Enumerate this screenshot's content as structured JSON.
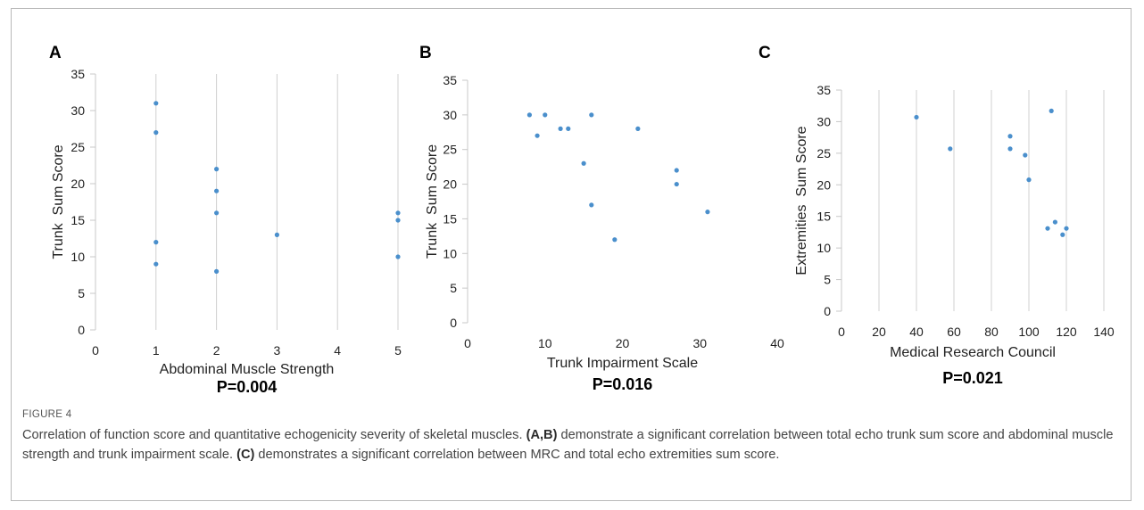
{
  "caption": {
    "label": "FIGURE 4",
    "text": [
      {
        "t": "Correlation of function score and quantitative echogenicity severity of skeletal muscles. ",
        "b": false
      },
      {
        "t": "(A,B)",
        "b": true
      },
      {
        "t": " demonstrate a significant correlation between total echo trunk sum score and abdominal muscle strength and trunk impairment scale. ",
        "b": false
      },
      {
        "t": "(C)",
        "b": true
      },
      {
        "t": " demonstrates a significant correlation between MRC and total echo extremities sum score.",
        "b": false
      }
    ]
  },
  "colors": {
    "point": "#4a8fcc",
    "grid": "#d0d0d0",
    "axis": "#c8c8c8"
  },
  "chart_data": [
    {
      "type": "scatter",
      "panel": "A",
      "xlabel": "Abdominal Muscle Strength",
      "ylabel": "Trunk  Sum Score",
      "p_value": "P=0.004",
      "xlim": [
        0,
        5
      ],
      "xticks": [
        0,
        1,
        2,
        3,
        4,
        5
      ],
      "ylim": [
        0,
        35
      ],
      "yticks": [
        0,
        5,
        10,
        15,
        20,
        25,
        30,
        35
      ],
      "grid": "vertical",
      "points": [
        [
          1,
          31
        ],
        [
          1,
          27
        ],
        [
          1,
          12
        ],
        [
          1,
          9
        ],
        [
          2,
          22
        ],
        [
          2,
          19
        ],
        [
          2,
          16
        ],
        [
          2,
          8
        ],
        [
          3,
          13
        ],
        [
          5,
          16
        ],
        [
          5,
          15
        ],
        [
          5,
          10
        ]
      ]
    },
    {
      "type": "scatter",
      "panel": "B",
      "xlabel": "Trunk Impairment Scale",
      "ylabel": "Trunk  Sum Score",
      "p_value": "P=0.016",
      "xlim": [
        0,
        40
      ],
      "xticks": [
        0,
        10,
        20,
        30,
        40
      ],
      "ylim": [
        0,
        35
      ],
      "yticks": [
        0,
        5,
        10,
        15,
        20,
        25,
        30,
        35
      ],
      "grid": "none",
      "points": [
        [
          8,
          30
        ],
        [
          10,
          30
        ],
        [
          9,
          27
        ],
        [
          12,
          28
        ],
        [
          13,
          28
        ],
        [
          16,
          30
        ],
        [
          15,
          23
        ],
        [
          16,
          17
        ],
        [
          19,
          12
        ],
        [
          22,
          28
        ],
        [
          27,
          22
        ],
        [
          27,
          20
        ],
        [
          31,
          16
        ]
      ]
    },
    {
      "type": "scatter",
      "panel": "C",
      "xlabel": "Medical Research Council",
      "ylabel": "Extremities  Sum Score",
      "p_value": "P=0.021",
      "xlim": [
        0,
        140
      ],
      "xticks": [
        0,
        20,
        40,
        60,
        80,
        100,
        120,
        140
      ],
      "ylim": [
        0,
        35
      ],
      "yticks": [
        0,
        5,
        10,
        15,
        20,
        25,
        30,
        35
      ],
      "grid": "vertical",
      "points": [
        [
          40,
          30.7
        ],
        [
          58,
          25.7
        ],
        [
          90,
          27.7
        ],
        [
          90,
          25.7
        ],
        [
          98,
          24.7
        ],
        [
          100,
          20.8
        ],
        [
          112,
          31.7
        ],
        [
          110,
          13.1
        ],
        [
          114,
          14.1
        ],
        [
          118,
          12.1
        ],
        [
          120,
          13.1
        ]
      ]
    }
  ]
}
